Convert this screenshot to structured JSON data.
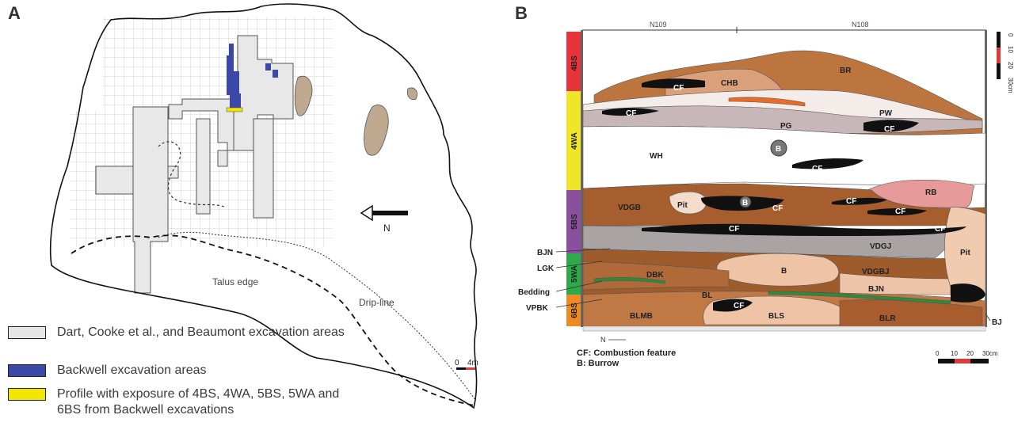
{
  "panel_a": {
    "label": "A",
    "labels": {
      "north": "N",
      "talus_edge": "Talus edge",
      "drip_line": "Drip-line",
      "scale_zero": "0",
      "scale_end": "4m"
    },
    "legend": [
      {
        "text": "Dart, Cooke et al., and Beaumont excavation areas",
        "color": "#e6e6e6"
      },
      {
        "text": "Backwell excavation areas",
        "color": "#3b48a8"
      },
      {
        "text": "Profile with exposure of 4BS, 4WA, 5BS, 5WA and 6BS from Backwell excavations",
        "color": "#f2e600"
      }
    ]
  },
  "panel_b": {
    "label": "B",
    "grid_refs": [
      "N109",
      "N108"
    ],
    "units": [
      {
        "name": "4BS",
        "color": "#e8323c"
      },
      {
        "name": "4WA",
        "color": "#f0e629"
      },
      {
        "name": "5BS",
        "color": "#8a4f9e"
      },
      {
        "name": "5WA",
        "color": "#2eaa4a"
      },
      {
        "name": "6BS",
        "color": "#f08a24"
      }
    ],
    "layer_labels": [
      "BR",
      "CHB",
      "CF",
      "PW",
      "CF",
      "PG",
      "CF",
      "B",
      "WH",
      "CF",
      "RB",
      "VDGB",
      "Pit",
      "B",
      "CF",
      "CF",
      "CF",
      "CF",
      "CF",
      "VDGJ",
      "Pit",
      "DBK",
      "B",
      "VDGBJ",
      "BJN",
      "BL",
      "CF",
      "BLS",
      "BLMB",
      "BLR"
    ],
    "side_labels": {
      "bjn": "BJN",
      "lgk": "LGK",
      "bedding": "Bedding",
      "vpbk": "VPBK",
      "bj": "BJ",
      "north": "N"
    },
    "notes": [
      "CF: Combustion feature",
      "B: Burrow"
    ],
    "scale_ticks": [
      "0",
      "10",
      "20",
      "30cm"
    ],
    "vertical_scale_ticks": [
      "0",
      "10",
      "20",
      "30cm"
    ]
  }
}
